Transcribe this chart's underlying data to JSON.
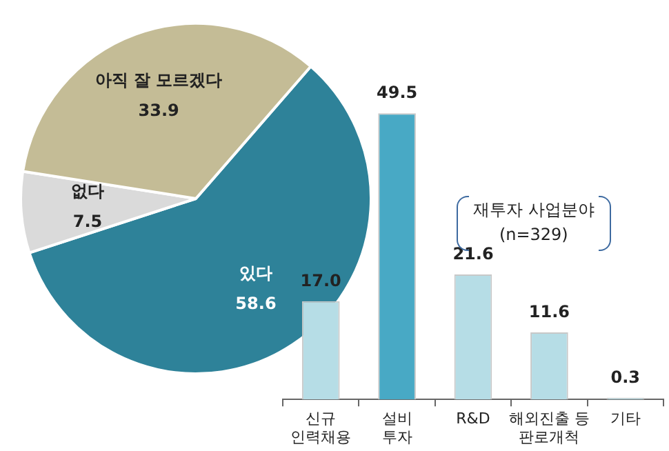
{
  "chart_data": [
    {
      "type": "pie",
      "categories": [
        "있다",
        "없다",
        "아직 잘 모르겠다"
      ],
      "values": [
        58.6,
        7.5,
        33.9
      ],
      "colors": [
        "#2e8299",
        "#dadada",
        "#c4bc96"
      ],
      "data_labels": true,
      "legend": false
    },
    {
      "type": "bar",
      "categories": [
        "신규\n인력채용",
        "설비\n투자",
        "R&D",
        "해외진출 등\n판로개척",
        "기타"
      ],
      "values": [
        17.0,
        49.5,
        21.6,
        11.6,
        0.3
      ],
      "value_labels": [
        "17.0",
        "49.5",
        "21.6",
        "11.6",
        "0.3"
      ],
      "colors": [
        "#b6dde6",
        "#48a9c5",
        "#b6dde6",
        "#b6dde6",
        "#b6dde6"
      ],
      "annotations": [
        "재투자 사업분야\n(n=329)"
      ],
      "legend": false,
      "grid": false
    }
  ]
}
